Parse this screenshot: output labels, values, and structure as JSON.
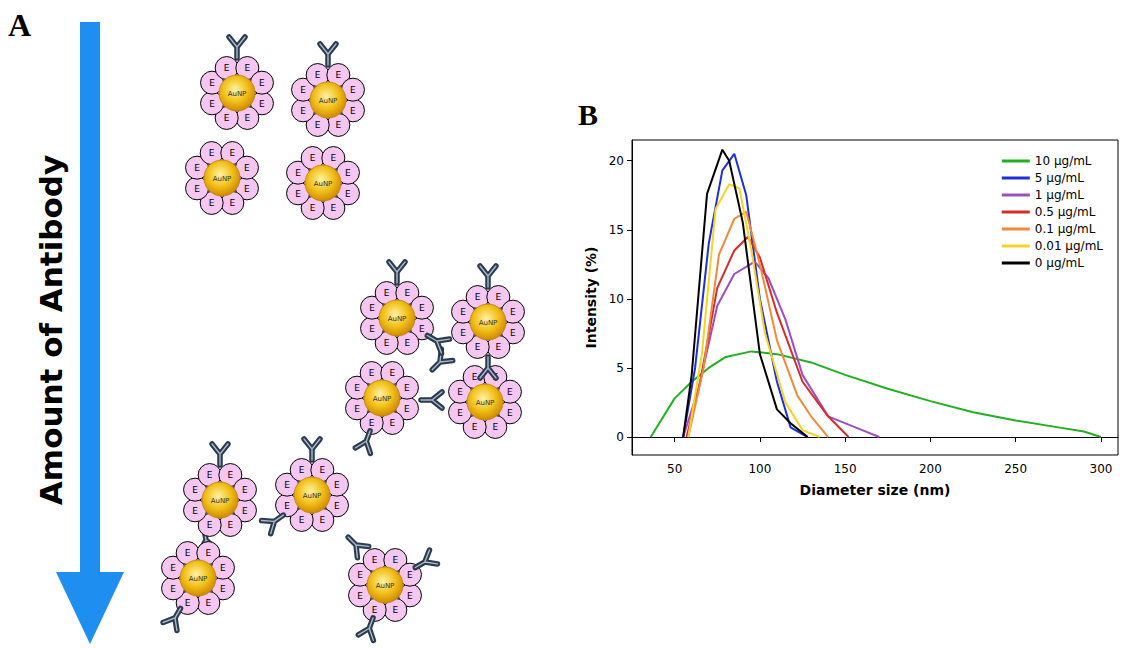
{
  "diagram": {
    "panel_label": "A",
    "arrow_label": "Amount of Antibody",
    "core_label": "AuNP",
    "shell_label": "E"
  },
  "chart_panel_label": "B",
  "chart_data": {
    "type": "line",
    "x_label": "Diameter size (nm)",
    "y_label": "Intensity (%)",
    "xlim": [
      25,
      310
    ],
    "xticks": [
      50,
      100,
      150,
      200,
      250,
      300
    ],
    "ylim": [
      -1.3,
      21.5
    ],
    "yticks": [
      0,
      5,
      10,
      15,
      20
    ],
    "grid": false,
    "legend": "upper right",
    "line_style": "solid",
    "series": [
      {
        "name": "10 µg/mL",
        "color": "#22b022",
        "x": [
          36,
          40,
          50,
          60,
          70,
          80,
          95,
          110,
          130,
          150,
          175,
          200,
          225,
          250,
          275,
          290,
          300
        ],
        "values": [
          0,
          0.8,
          2.8,
          4,
          5,
          5.8,
          6.2,
          6,
          5.4,
          4.5,
          3.5,
          2.6,
          1.8,
          1.2,
          0.7,
          0.4,
          0
        ]
      },
      {
        "name": "5 µg/mL",
        "color": "#1f2fd6",
        "x": [
          55,
          62,
          70,
          78,
          85,
          92,
          100,
          110,
          118,
          128
        ],
        "values": [
          0,
          5,
          14,
          19.3,
          20.5,
          17.5,
          10,
          4,
          0.7,
          0
        ]
      },
      {
        "name": "1 µg/mL",
        "color": "#9b4fc0",
        "x": [
          55,
          64,
          75,
          85,
          97,
          105,
          115,
          125,
          140,
          160,
          170
        ],
        "values": [
          0,
          3.5,
          9.5,
          11.8,
          12.7,
          11.5,
          8.5,
          4.5,
          1.5,
          0.5,
          0
        ]
      },
      {
        "name": "0.5 µg/mL",
        "color": "#d62b2b",
        "x": [
          57,
          65,
          75,
          85,
          93,
          100,
          110,
          125,
          140,
          152
        ],
        "values": [
          0,
          4,
          10.8,
          13.5,
          14.5,
          13,
          9,
          4,
          1.5,
          0
        ]
      },
      {
        "name": "0.1 µg/mL",
        "color": "#f08a3a",
        "x": [
          58,
          67,
          76,
          85,
          92,
          100,
          110,
          122,
          130,
          140
        ],
        "values": [
          0,
          5,
          13.2,
          15.8,
          16.3,
          12.5,
          7,
          3,
          1.5,
          0
        ]
      },
      {
        "name": "0.01 µg/mL",
        "color": "#f5d327",
        "x": [
          58,
          66,
          74,
          82,
          88,
          95,
          103,
          115,
          125,
          135
        ],
        "values": [
          0,
          6,
          16.5,
          18.3,
          18,
          13.5,
          7.5,
          2.5,
          0.5,
          0
        ]
      },
      {
        "name": "0 µg/mL",
        "color": "#000000",
        "x": [
          55,
          60,
          69,
          78,
          82,
          90,
          100,
          110,
          118,
          128
        ],
        "values": [
          0,
          4.5,
          17.6,
          20.8,
          20,
          15.5,
          6,
          2,
          1,
          0
        ]
      }
    ]
  }
}
